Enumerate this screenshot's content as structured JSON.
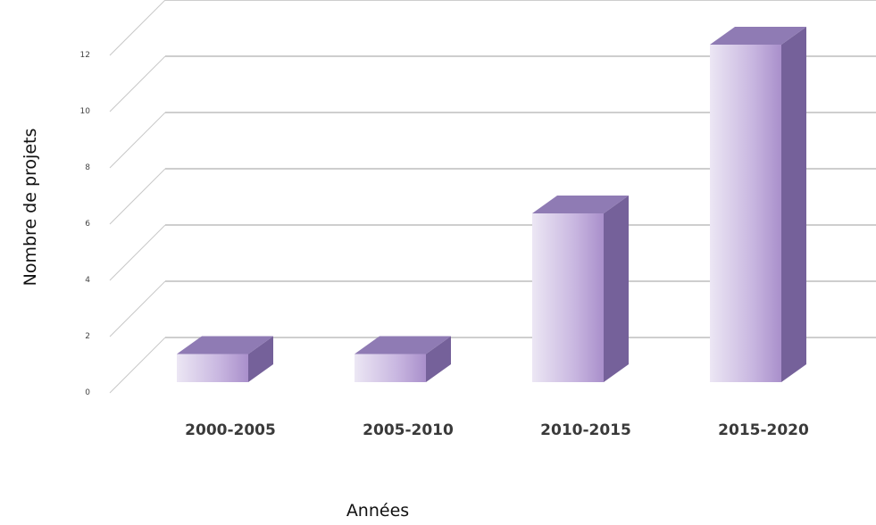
{
  "chart_data": {
    "type": "bar",
    "title": "",
    "xlabel": "Années",
    "ylabel": "Nombre de projets",
    "categories": [
      "2000-2005",
      "2005-2010",
      "2010-2015",
      "2015-2020"
    ],
    "values": [
      1,
      1,
      6,
      12
    ],
    "yticks": [
      "0",
      "2",
      "4",
      "6",
      "8",
      "10",
      "12"
    ],
    "ylim": [
      0,
      13
    ],
    "grid": true,
    "legend": "none",
    "colors": {
      "bar_light": "#ece7f4",
      "bar_mid": "#c8b6e0",
      "bar_dark": "#a98fcb",
      "bar_top": "#8f7bb4",
      "bar_side": "#75619a",
      "grid": "#bdbdbd"
    }
  }
}
